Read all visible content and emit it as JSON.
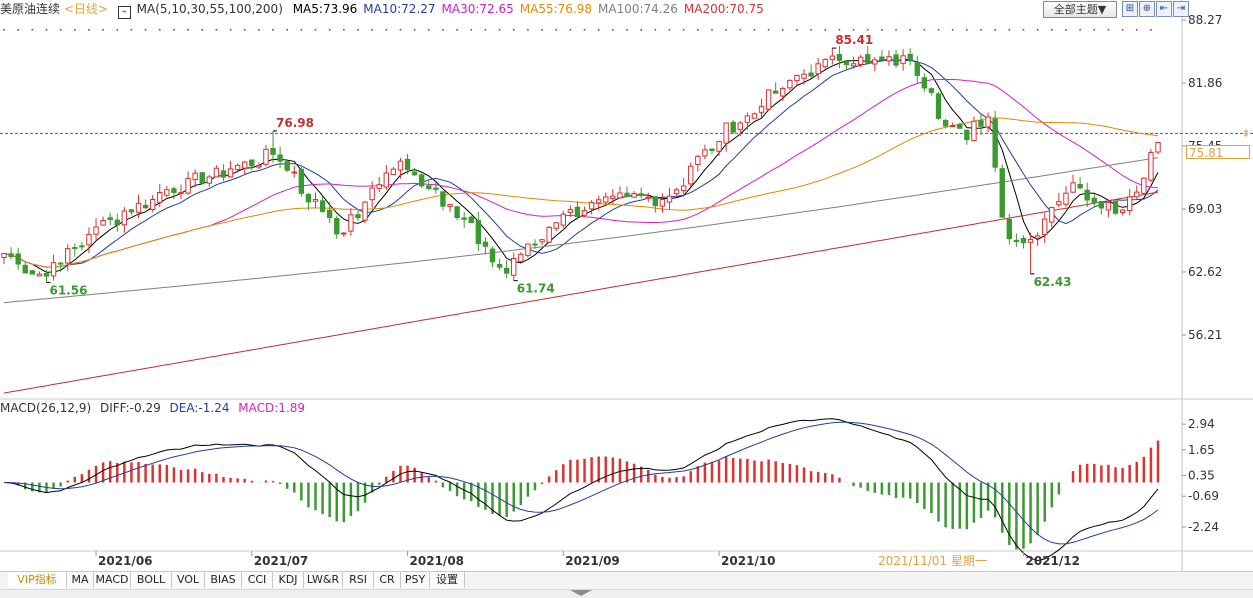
{
  "header": {
    "symbol": "美原油连续",
    "period": "<日线>",
    "ma_label": "MA(5,10,30,55,100,200)",
    "ma_values": [
      {
        "label": "MA5:73.96",
        "color": "#000000"
      },
      {
        "label": "MA10:72.27",
        "color": "#1f3fa0"
      },
      {
        "label": "MA30:72.65",
        "color": "#d020d0"
      },
      {
        "label": "MA55:76.98",
        "color": "#e08a00"
      },
      {
        "label": "MA100:74.26",
        "color": "#808080"
      },
      {
        "label": "MA200:70.75",
        "color": "#e03030"
      }
    ],
    "theme_button": "全部主题▼",
    "tool_icons": [
      "expand-icon",
      "zoom-in-icon",
      "first-page-icon",
      "last-page-icon"
    ]
  },
  "macd_header": {
    "label": "MACD(26,12,9)",
    "diff": "DIFF:-0.29",
    "dea": "DEA:-1.24",
    "macd": "MACD:1.89"
  },
  "current_price_tag": "75.81",
  "crosshair_date": "2021/11/01 星期一",
  "tabs": [
    "VIP指标",
    "MA",
    "MACD",
    "BOLL",
    "VOL",
    "BIAS",
    "CCI",
    "KDJ",
    "LW&R",
    "RSI",
    "CR",
    "PSY",
    "设置"
  ],
  "chart_data": {
    "type": "candlestick",
    "price_axis_ticks": [
      "88.27",
      "81.86",
      "75.45",
      "69.03",
      "62.62",
      "56.21"
    ],
    "price_ylim": [
      50.0,
      88.27
    ],
    "macd_axis_ticks": [
      "2.94",
      "1.65",
      "0.35",
      "-0.69",
      "-2.24"
    ],
    "macd_ylim": [
      -3.4,
      3.2
    ],
    "x_labels": [
      {
        "label": "2021/06",
        "date": "2021-06-01"
      },
      {
        "label": "2021/07",
        "date": "2021-07-01"
      },
      {
        "label": "2021/08",
        "date": "2021-08-02"
      },
      {
        "label": "2021/09",
        "date": "2021-09-01"
      },
      {
        "label": "2021/10",
        "date": "2021-10-01"
      },
      {
        "label": "2021/12",
        "date": "2021-12-01"
      }
    ],
    "annotations": [
      {
        "text": "61.56",
        "value": 61.56,
        "date": "2021-05-21",
        "kind": "low"
      },
      {
        "text": "76.98",
        "value": 76.98,
        "date": "2021-07-06",
        "kind": "high"
      },
      {
        "text": "61.74",
        "value": 61.74,
        "date": "2021-08-23",
        "kind": "low"
      },
      {
        "text": "85.41",
        "value": 85.41,
        "date": "2021-10-25",
        "kind": "high"
      },
      {
        "text": "62.43",
        "value": 62.43,
        "date": "2021-12-02",
        "kind": "low"
      }
    ],
    "close_anchors": [
      [
        "2021-05-13",
        64.5
      ],
      [
        "2021-05-21",
        62.2
      ],
      [
        "2021-06-01",
        67.2
      ],
      [
        "2021-06-15",
        71.0
      ],
      [
        "2021-07-06",
        74.6
      ],
      [
        "2021-07-19",
        66.5
      ],
      [
        "2021-07-30",
        73.9
      ],
      [
        "2021-08-10",
        69.5
      ],
      [
        "2021-08-20",
        62.5
      ],
      [
        "2021-09-01",
        68.5
      ],
      [
        "2021-09-14",
        70.3
      ],
      [
        "2021-09-21",
        70.0
      ],
      [
        "2021-10-01",
        75.9
      ],
      [
        "2021-10-14",
        81.3
      ],
      [
        "2021-10-25",
        84.6
      ],
      [
        "2021-11-01",
        83.9
      ],
      [
        "2021-11-09",
        84.2
      ],
      [
        "2021-11-12",
        80.9
      ],
      [
        "2021-11-19",
        76.1
      ],
      [
        "2021-11-24",
        78.4
      ],
      [
        "2021-11-26",
        68.2
      ],
      [
        "2021-12-01",
        65.6
      ],
      [
        "2021-12-03",
        66.3
      ],
      [
        "2021-12-10",
        71.7
      ],
      [
        "2021-12-20",
        68.6
      ],
      [
        "2021-12-28",
        75.8
      ]
    ],
    "ma_end_values": {
      "MA5": 73.96,
      "MA10": 72.27,
      "MA30": 72.65,
      "MA55": 76.98,
      "MA100": 74.26,
      "MA200": 70.75
    },
    "macd_end_values": {
      "DIFF": -0.29,
      "DEA": -1.24,
      "MACD": 1.89
    },
    "colors": {
      "up": "#e03030",
      "down": "#3a9a30",
      "diff": "#000000",
      "dea": "#1f3fa0",
      "grid_dash": "#3a5bb0"
    }
  }
}
